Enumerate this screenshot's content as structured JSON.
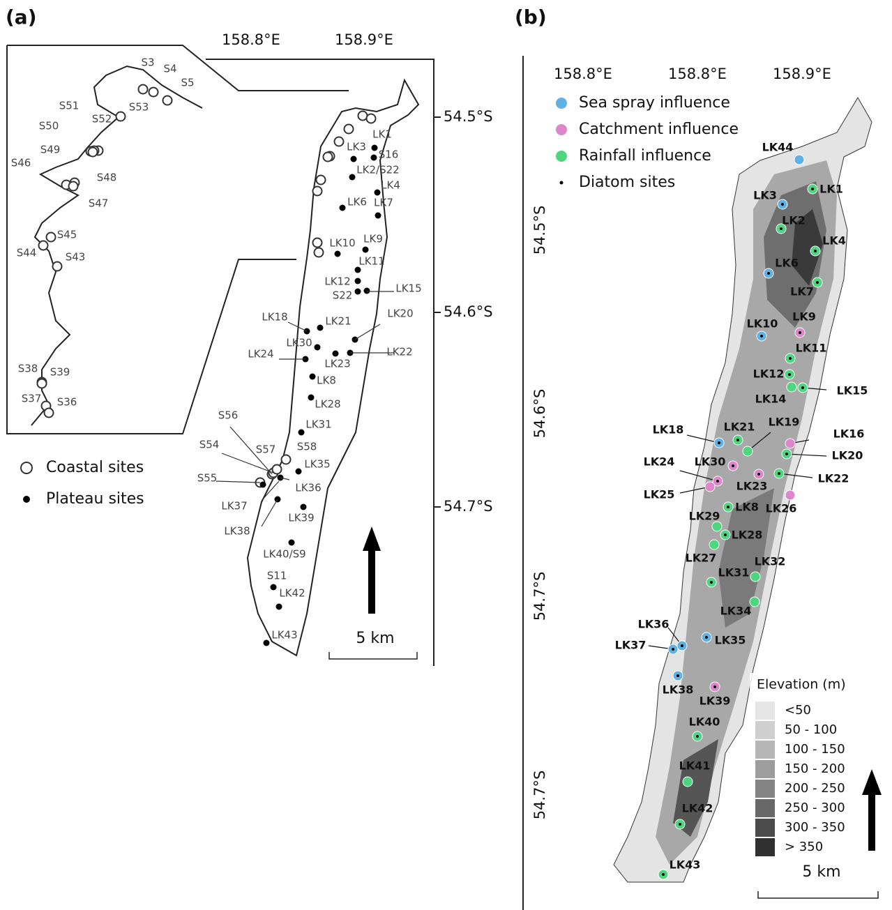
{
  "panel_a": {
    "label": "(a)",
    "lon_labels": [
      "158.8°E",
      "158.9°E"
    ],
    "lat_labels": [
      "54.5°S",
      "54.6°S",
      "54.7°S"
    ],
    "coastal_sites": [
      "S3",
      "S4",
      "S5",
      "S53",
      "S52",
      "S51",
      "S50",
      "S49",
      "S46",
      "S48",
      "S47",
      "S45",
      "S44",
      "S43",
      "S38",
      "S39",
      "S37",
      "S36",
      "S56",
      "S54",
      "S57",
      "S58",
      "S55"
    ],
    "plateau_sites": [
      "LK1",
      "S16",
      "LK3",
      "LK2/S22",
      "LK4",
      "LK7",
      "LK6",
      "LK10",
      "LK9",
      "LK11",
      "LK12",
      "S22",
      "LK15",
      "LK18",
      "LK21",
      "LK20",
      "LK30",
      "LK24",
      "LK23",
      "LK22",
      "LK8",
      "LK28",
      "LK31",
      "LK35",
      "LK36",
      "LK37",
      "LK38",
      "LK39",
      "LK40/S9",
      "S11",
      "LK42",
      "LK43"
    ],
    "legend": [
      "Coastal sites",
      "Plateau sites"
    ],
    "scale": "5 km"
  },
  "panel_b": {
    "label": "(b)",
    "lon_labels": [
      "158.8°E",
      "158.8°E",
      "158.9°E"
    ],
    "lat_labels": [
      "54.5°S",
      "54.6°S",
      "54.7°S",
      "54.7°S"
    ],
    "groups": [
      {
        "name": "Sea spray influence",
        "color": "#5fb0e3",
        "sites": [
          "LK44",
          "LK3",
          "LK6",
          "LK10",
          "LK18",
          "LK36",
          "LK37",
          "LK38",
          "LK35"
        ]
      },
      {
        "name": "Catchment influence",
        "color": "#dd86cc",
        "sites": [
          "LK9",
          "LK16",
          "LK30",
          "LK24",
          "LK25",
          "LK23",
          "LK26",
          "LK39"
        ]
      },
      {
        "name": "Rainfall influence",
        "color": "#4ed67e",
        "sites": [
          "LK1",
          "LK2",
          "LK4",
          "LK7",
          "LK11",
          "LK12",
          "LK15",
          "LK14",
          "LK21",
          "LK19",
          "LK20",
          "LK22",
          "LK8",
          "LK29",
          "LK28",
          "LK27",
          "LK31",
          "LK32",
          "LK34",
          "LK40",
          "LK41",
          "LK42",
          "LK43"
        ]
      }
    ],
    "diatom_legend": "Diatom sites",
    "elevation_title": "Elevation (m)",
    "elevation_classes": [
      {
        "label": "<50",
        "color": "#e6e6e6"
      },
      {
        "label": "50 - 100",
        "color": "#cfcfcf"
      },
      {
        "label": "100 - 150",
        "color": "#b6b6b6"
      },
      {
        "label": "150 - 200",
        "color": "#9d9d9d"
      },
      {
        "label": "200 - 250",
        "color": "#848484"
      },
      {
        "label": "250 - 300",
        "color": "#686868"
      },
      {
        "label": "300 - 350",
        "color": "#4c4c4c"
      },
      {
        "label": "> 350",
        "color": "#303030"
      }
    ],
    "scale": "5 km"
  }
}
